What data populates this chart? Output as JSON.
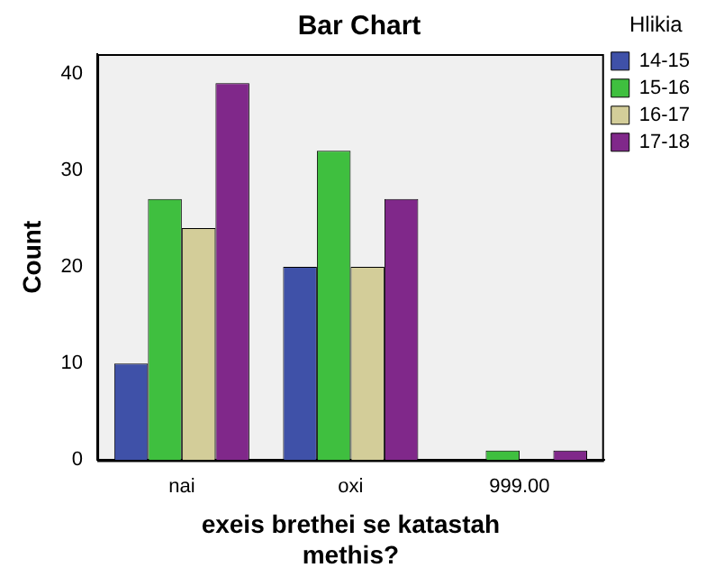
{
  "chart_data": {
    "type": "bar",
    "title": "Bar Chart",
    "xlabel": "exeis brethei se katastah methis?",
    "ylabel": "Count",
    "legend_title": "Hlikia",
    "legend": "top right",
    "categories": [
      "nai",
      "oxi",
      "999.00"
    ],
    "series": [
      {
        "name": "14-15",
        "color": "#3f51a8",
        "values": [
          10,
          20,
          0
        ]
      },
      {
        "name": "15-16",
        "color": "#3fbf3f",
        "values": [
          27,
          32,
          1
        ]
      },
      {
        "name": "16-17",
        "color": "#d3cd99",
        "values": [
          24,
          20,
          0
        ]
      },
      {
        "name": "17-18",
        "color": "#80288a",
        "values": [
          39,
          27,
          1
        ]
      }
    ],
    "ylim": [
      0,
      42
    ],
    "yticks": [
      0,
      10,
      20,
      30,
      40
    ],
    "grid": false
  }
}
